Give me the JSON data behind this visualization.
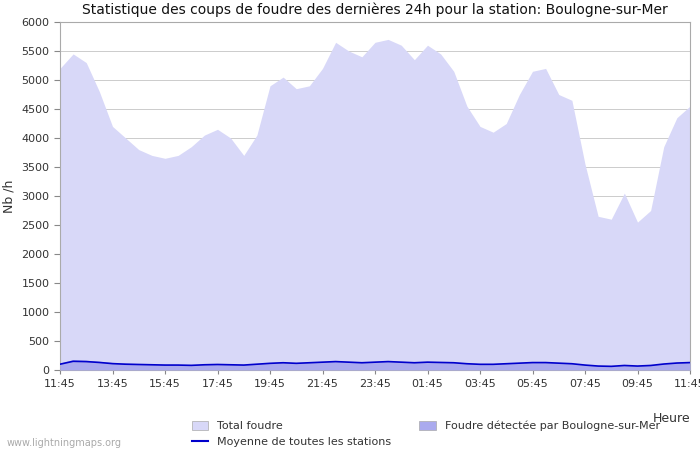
{
  "title": "Statistique des coups de foudre des dernières 24h pour la station: Boulogne-sur-Mer",
  "xlabel": "Heure",
  "ylabel": "Nb /h",
  "ylim": [
    0,
    6000
  ],
  "yticks": [
    0,
    500,
    1000,
    1500,
    2000,
    2500,
    3000,
    3500,
    4000,
    4500,
    5000,
    5500,
    6000
  ],
  "xtick_labels": [
    "11:45",
    "13:45",
    "15:45",
    "17:45",
    "19:45",
    "21:45",
    "23:45",
    "01:45",
    "03:45",
    "05:45",
    "07:45",
    "09:45",
    "11:45"
  ],
  "background_color": "#ffffff",
  "plot_bg_color": "#ffffff",
  "grid_color": "#cccccc",
  "total_foudre_color": "#d8d8f8",
  "local_foudre_color": "#aaaaee",
  "moyenne_color": "#0000cc",
  "watermark": "www.lightningmaps.org",
  "total_foudre_values": [
    5200,
    5450,
    5300,
    4800,
    4200,
    4000,
    3800,
    3700,
    3650,
    3700,
    3850,
    4050,
    4150,
    4000,
    3700,
    4050,
    4900,
    5050,
    4850,
    4900,
    5200,
    5650,
    5500,
    5400,
    5650,
    5700,
    5600,
    5350,
    5600,
    5450,
    5150,
    4550,
    4200,
    4100,
    4250,
    4750,
    5150,
    5200,
    4750,
    4650,
    3550,
    2650,
    2600,
    3050,
    2550,
    2750,
    3850,
    4350,
    4550
  ],
  "local_foudre_values": [
    120,
    180,
    170,
    150,
    130,
    120,
    110,
    105,
    100,
    95,
    90,
    100,
    110,
    105,
    95,
    110,
    130,
    140,
    130,
    140,
    150,
    160,
    150,
    140,
    150,
    160,
    150,
    140,
    150,
    145,
    140,
    120,
    110,
    110,
    120,
    130,
    140,
    140,
    130,
    120,
    95,
    75,
    70,
    85,
    75,
    85,
    115,
    135,
    145
  ],
  "moyenne_values": [
    100,
    150,
    145,
    130,
    110,
    100,
    95,
    90,
    85,
    85,
    80,
    90,
    95,
    90,
    85,
    100,
    115,
    125,
    115,
    125,
    135,
    145,
    135,
    125,
    135,
    145,
    135,
    125,
    135,
    130,
    125,
    108,
    98,
    98,
    108,
    118,
    128,
    128,
    118,
    108,
    85,
    68,
    63,
    78,
    68,
    78,
    103,
    120,
    128
  ]
}
